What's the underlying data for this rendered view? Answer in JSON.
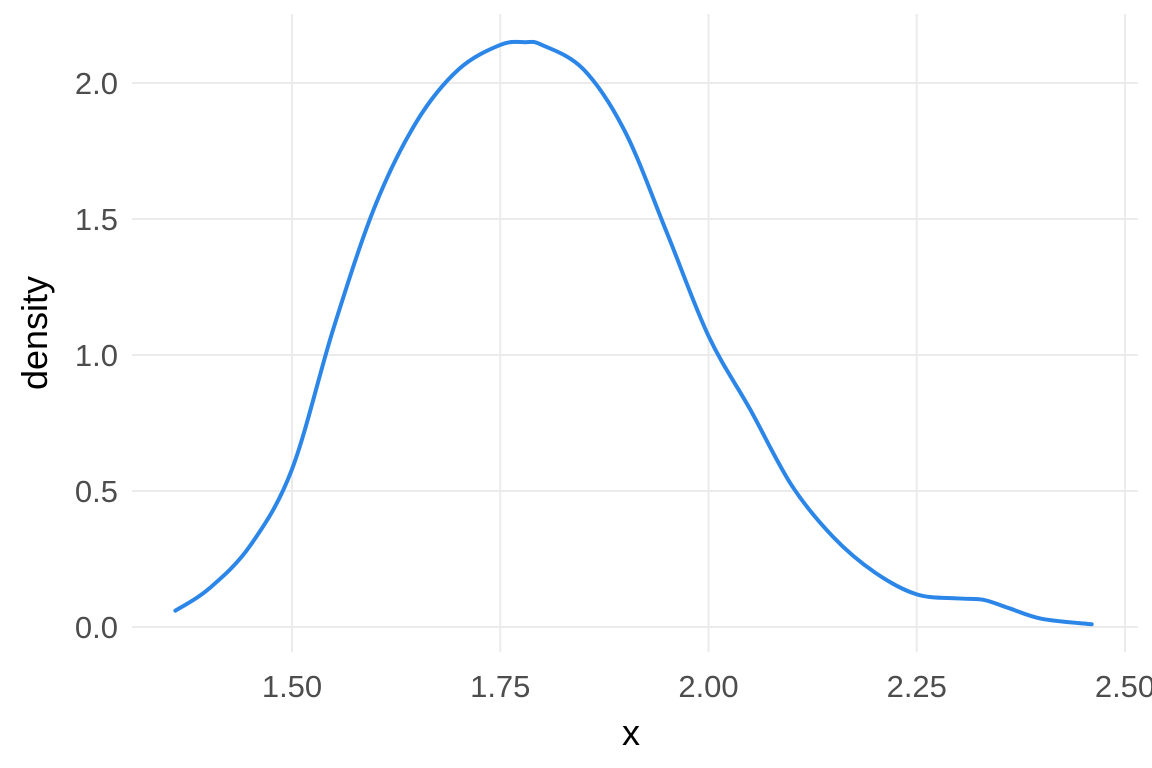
{
  "chart_data": {
    "type": "line",
    "title": "",
    "xlabel": "x",
    "ylabel": "density",
    "xlim": [
      1.36,
      2.5
    ],
    "ylim": [
      0,
      2.15
    ],
    "x_ticks": [
      1.5,
      1.75,
      2.0,
      2.25,
      2.5
    ],
    "x_tick_labels": [
      "1.50",
      "1.75",
      "2.00",
      "2.25",
      "2.50"
    ],
    "y_ticks": [
      0,
      0.5,
      1.0,
      1.5,
      2.0
    ],
    "y_tick_labels": [
      "0.0",
      "0.5",
      "1.0",
      "1.5",
      "2.0"
    ],
    "grid": true,
    "legend": "none",
    "colors": {
      "line": "#2b86e8",
      "grid": "#ebebeb",
      "tick_text": "#4d4d4d",
      "axis_title": "#000000"
    },
    "series": [
      {
        "x": [
          1.36,
          1.4,
          1.45,
          1.5,
          1.55,
          1.6,
          1.65,
          1.7,
          1.75,
          1.78,
          1.8,
          1.85,
          1.9,
          1.95,
          2.0,
          2.05,
          2.1,
          2.15,
          2.2,
          2.25,
          2.3,
          2.33,
          2.36,
          2.4,
          2.46
        ],
        "values": [
          0.06,
          0.14,
          0.3,
          0.58,
          1.1,
          1.55,
          1.86,
          2.05,
          2.14,
          2.15,
          2.14,
          2.05,
          1.82,
          1.45,
          1.07,
          0.8,
          0.52,
          0.33,
          0.2,
          0.12,
          0.105,
          0.1,
          0.07,
          0.03,
          0.01
        ]
      }
    ]
  }
}
